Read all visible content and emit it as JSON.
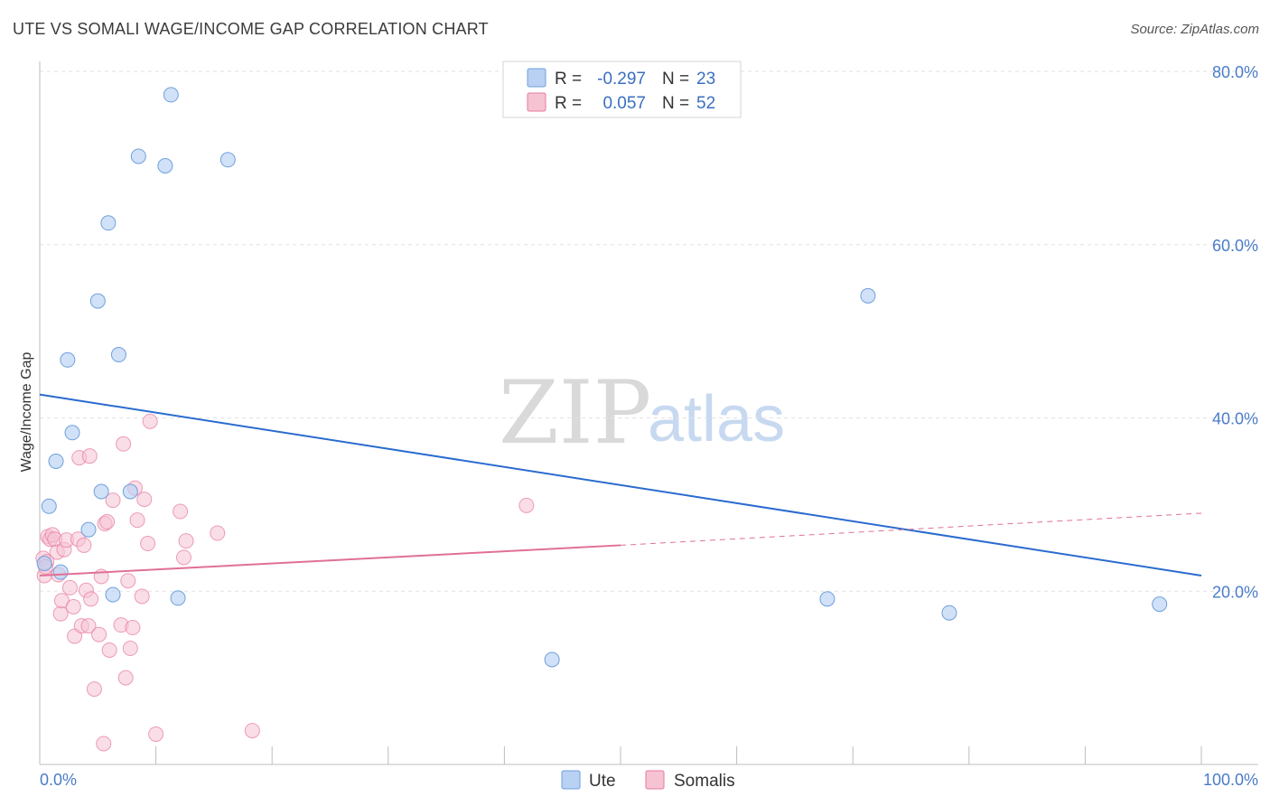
{
  "title": "UTE VS SOMALI WAGE/INCOME GAP CORRELATION CHART",
  "source": "Source: ZipAtlas.com",
  "watermark": {
    "zip": "ZIP",
    "atlas": "atlas"
  },
  "colors": {
    "ute": "#6fa0dc",
    "ute_fill": "#b9d1f2",
    "somali": "#e6789c",
    "somali_fill": "#f6c3d3",
    "ute_line": "#2a6bcf",
    "somali_line": "#e07098",
    "tick": "#4a7cc9"
  },
  "legend": {
    "rows": [
      {
        "r_label": "R =",
        "r_value": "-0.297",
        "n_label": "N =",
        "n_value": "23"
      },
      {
        "r_label": "R =",
        "r_value": "0.057",
        "n_label": "N =",
        "n_value": "52"
      }
    ]
  },
  "bottom_legend": {
    "ute": "Ute",
    "somali": "Somalis"
  },
  "chart_data": {
    "type": "scatter",
    "title": "UTE VS SOMALI WAGE/INCOME GAP CORRELATION CHART",
    "xlabel": "",
    "ylabel": "Wage/Income Gap",
    "xlim": [
      0,
      100
    ],
    "ylim": [
      0,
      80
    ],
    "x_tick_labels": [
      "0.0%",
      "100.0%"
    ],
    "y_ticks": [
      20,
      40,
      60,
      80
    ],
    "y_tick_labels": [
      "20.0%",
      "40.0%",
      "60.0%",
      "80.0%"
    ],
    "series": [
      {
        "name": "Ute",
        "r": -0.297,
        "n": 23,
        "trend": {
          "x": [
            0,
            100
          ],
          "y": [
            42.7,
            21.8
          ]
        },
        "points": [
          {
            "x": 0.4,
            "y": 23.2
          },
          {
            "x": 0.8,
            "y": 29.8
          },
          {
            "x": 1.4,
            "y": 35.0
          },
          {
            "x": 1.8,
            "y": 22.2
          },
          {
            "x": 2.4,
            "y": 46.7
          },
          {
            "x": 2.8,
            "y": 38.3
          },
          {
            "x": 4.2,
            "y": 27.1
          },
          {
            "x": 5.0,
            "y": 53.5
          },
          {
            "x": 5.3,
            "y": 31.5
          },
          {
            "x": 5.9,
            "y": 62.5
          },
          {
            "x": 6.3,
            "y": 19.6
          },
          {
            "x": 6.8,
            "y": 47.3
          },
          {
            "x": 7.8,
            "y": 31.5
          },
          {
            "x": 8.5,
            "y": 70.2
          },
          {
            "x": 10.8,
            "y": 69.1
          },
          {
            "x": 11.3,
            "y": 77.3
          },
          {
            "x": 11.9,
            "y": 19.2
          },
          {
            "x": 16.2,
            "y": 69.8
          },
          {
            "x": 44.1,
            "y": 12.1
          },
          {
            "x": 67.8,
            "y": 19.1
          },
          {
            "x": 71.3,
            "y": 54.1
          },
          {
            "x": 78.3,
            "y": 17.5
          },
          {
            "x": 96.4,
            "y": 18.5
          }
        ]
      },
      {
        "name": "Somalis",
        "r": 0.057,
        "n": 52,
        "trend_solid": {
          "x": [
            0,
            50
          ],
          "y": [
            21.8,
            25.3
          ]
        },
        "trend_dashed": {
          "x": [
            50,
            100
          ],
          "y": [
            25.3,
            29.0
          ]
        },
        "points": [
          {
            "x": 0.3,
            "y": 23.8
          },
          {
            "x": 0.4,
            "y": 21.8
          },
          {
            "x": 0.6,
            "y": 23.4
          },
          {
            "x": 0.7,
            "y": 26.3
          },
          {
            "x": 0.9,
            "y": 26.0
          },
          {
            "x": 1.1,
            "y": 26.5
          },
          {
            "x": 1.3,
            "y": 26.0
          },
          {
            "x": 1.5,
            "y": 24.5
          },
          {
            "x": 1.6,
            "y": 21.9
          },
          {
            "x": 1.8,
            "y": 17.4
          },
          {
            "x": 1.9,
            "y": 18.9
          },
          {
            "x": 2.1,
            "y": 24.8
          },
          {
            "x": 2.3,
            "y": 25.9
          },
          {
            "x": 2.6,
            "y": 20.4
          },
          {
            "x": 2.9,
            "y": 18.2
          },
          {
            "x": 3.0,
            "y": 14.8
          },
          {
            "x": 3.3,
            "y": 26.0
          },
          {
            "x": 3.4,
            "y": 35.4
          },
          {
            "x": 3.6,
            "y": 16.0
          },
          {
            "x": 3.8,
            "y": 25.3
          },
          {
            "x": 4.0,
            "y": 20.1
          },
          {
            "x": 4.2,
            "y": 16.0
          },
          {
            "x": 4.3,
            "y": 35.6
          },
          {
            "x": 4.4,
            "y": 19.1
          },
          {
            "x": 4.7,
            "y": 8.7
          },
          {
            "x": 5.1,
            "y": 15.0
          },
          {
            "x": 5.3,
            "y": 21.7
          },
          {
            "x": 5.5,
            "y": 2.4
          },
          {
            "x": 5.6,
            "y": 27.8
          },
          {
            "x": 5.8,
            "y": 28.0
          },
          {
            "x": 6.0,
            "y": 13.2
          },
          {
            "x": 6.3,
            "y": 30.5
          },
          {
            "x": 7.0,
            "y": 16.1
          },
          {
            "x": 7.2,
            "y": 37.0
          },
          {
            "x": 7.4,
            "y": 10.0
          },
          {
            "x": 7.6,
            "y": 21.2
          },
          {
            "x": 7.8,
            "y": 13.4
          },
          {
            "x": 8.0,
            "y": 15.8
          },
          {
            "x": 8.2,
            "y": 31.9
          },
          {
            "x": 8.4,
            "y": 28.2
          },
          {
            "x": 8.8,
            "y": 19.4
          },
          {
            "x": 9.0,
            "y": 30.6
          },
          {
            "x": 9.3,
            "y": 25.5
          },
          {
            "x": 9.5,
            "y": 39.6
          },
          {
            "x": 10.0,
            "y": 3.5
          },
          {
            "x": 12.1,
            "y": 29.2
          },
          {
            "x": 12.4,
            "y": 23.9
          },
          {
            "x": 12.6,
            "y": 25.8
          },
          {
            "x": 15.3,
            "y": 26.7
          },
          {
            "x": 18.3,
            "y": 3.9
          },
          {
            "x": 41.9,
            "y": 29.9
          },
          {
            "x": 0.5,
            "y": 22.8
          }
        ]
      }
    ]
  }
}
